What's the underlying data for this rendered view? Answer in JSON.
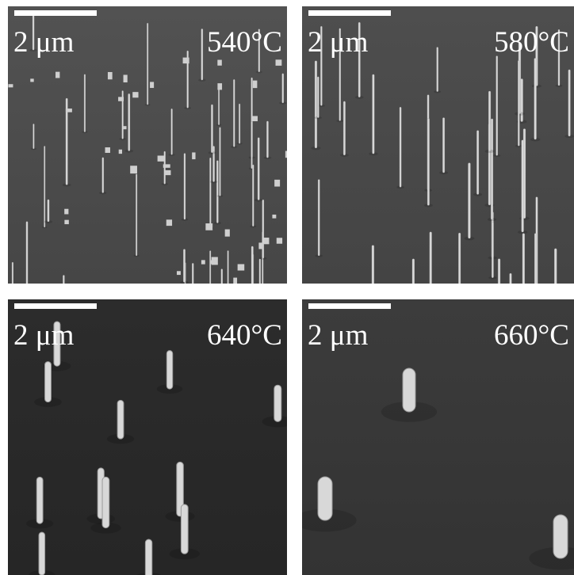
{
  "panels": [
    {
      "scale_label": "2 μm",
      "temperature": "540°C"
    },
    {
      "scale_label": "2 μm",
      "temperature": "580°C"
    },
    {
      "scale_label": "2 μm",
      "temperature": "640°C"
    },
    {
      "scale_label": "2 μm",
      "temperature": "660°C"
    }
  ]
}
